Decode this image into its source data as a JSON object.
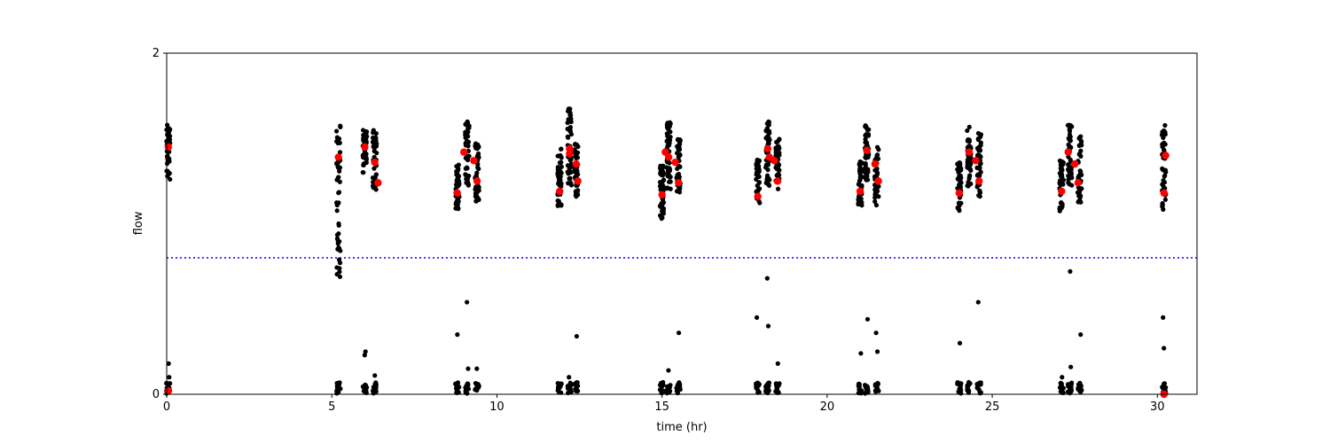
{
  "chart_data": {
    "type": "scatter",
    "title": "",
    "xlabel": "time (hr)",
    "ylabel": "flow",
    "xlim": [
      0,
      31.2
    ],
    "ylim": [
      0,
      2
    ],
    "xticks": [
      0,
      5,
      10,
      15,
      20,
      25,
      30
    ],
    "xtick_labels": [
      "0",
      "5",
      "10",
      "15",
      "20",
      "25",
      "30"
    ],
    "yticks": [
      0,
      2
    ],
    "ytick_labels": [
      "0",
      "2"
    ],
    "grid": false,
    "threshold_line": {
      "y": 0.8,
      "style": "dotted",
      "color": "#0000ff"
    },
    "colors": {
      "points": "#000000",
      "highlights": "#ff0000",
      "threshold": "#0000ff"
    },
    "clusters": [
      {
        "x": 0.05,
        "low": 1.26,
        "high": 1.58,
        "zeros": true,
        "outliers": [
          0.18,
          0.1
        ]
      },
      {
        "x": 5.2,
        "low": 0.67,
        "high": 1.58,
        "zeros": true,
        "outliers": [
          0.9,
          1.0
        ]
      },
      {
        "x": 6.0,
        "low": 1.3,
        "high": 1.55,
        "zeros": true,
        "outliers": [
          0.25,
          0.23
        ]
      },
      {
        "x": 6.3,
        "low": 1.2,
        "high": 1.55,
        "zeros": true,
        "outliers": [
          0.11
        ]
      },
      {
        "x": 8.8,
        "low": 1.08,
        "high": 1.35,
        "zeros": true,
        "outliers": [
          0.35
        ]
      },
      {
        "x": 9.1,
        "low": 1.22,
        "high": 1.6,
        "zeros": true,
        "outliers": [
          0.54,
          0.15
        ]
      },
      {
        "x": 9.4,
        "low": 1.13,
        "high": 1.48,
        "zeros": true,
        "outliers": [
          0.15
        ]
      },
      {
        "x": 11.9,
        "low": 1.1,
        "high": 1.45,
        "zeros": true,
        "outliers": []
      },
      {
        "x": 12.2,
        "low": 1.22,
        "high": 1.68,
        "zeros": true,
        "outliers": [
          0.1
        ]
      },
      {
        "x": 12.4,
        "low": 1.15,
        "high": 1.47,
        "zeros": true,
        "outliers": [
          0.34
        ]
      },
      {
        "x": 15.0,
        "low": 1.03,
        "high": 1.35,
        "zeros": true,
        "outliers": []
      },
      {
        "x": 15.2,
        "low": 1.2,
        "high": 1.6,
        "zeros": true,
        "outliers": [
          0.14
        ]
      },
      {
        "x": 15.5,
        "low": 1.18,
        "high": 1.5,
        "zeros": true,
        "outliers": [
          0.36
        ]
      },
      {
        "x": 17.9,
        "low": 1.1,
        "high": 1.38,
        "zeros": true,
        "outliers": [
          0.45
        ]
      },
      {
        "x": 18.2,
        "low": 1.22,
        "high": 1.6,
        "zeros": true,
        "outliers": [
          0.68,
          0.4
        ]
      },
      {
        "x": 18.5,
        "low": 1.2,
        "high": 1.5,
        "zeros": true,
        "outliers": [
          0.18
        ]
      },
      {
        "x": 21.0,
        "low": 1.1,
        "high": 1.37,
        "zeros": true,
        "outliers": [
          0.24
        ]
      },
      {
        "x": 21.2,
        "low": 1.25,
        "high": 1.58,
        "zeros": true,
        "outliers": [
          0.44
        ]
      },
      {
        "x": 21.5,
        "low": 1.1,
        "high": 1.45,
        "zeros": true,
        "outliers": [
          0.36,
          0.25
        ]
      },
      {
        "x": 24.0,
        "low": 1.06,
        "high": 1.36,
        "zeros": true,
        "outliers": [
          0.3
        ]
      },
      {
        "x": 24.3,
        "low": 1.22,
        "high": 1.57,
        "zeros": true,
        "outliers": [
          0.07
        ]
      },
      {
        "x": 24.6,
        "low": 1.16,
        "high": 1.55,
        "zeros": true,
        "outliers": [
          0.54
        ]
      },
      {
        "x": 27.1,
        "low": 1.06,
        "high": 1.38,
        "zeros": true,
        "outliers": [
          0.1
        ]
      },
      {
        "x": 27.35,
        "low": 1.22,
        "high": 1.58,
        "zeros": true,
        "outliers": [
          0.72,
          0.16
        ]
      },
      {
        "x": 27.65,
        "low": 1.12,
        "high": 1.52,
        "zeros": true,
        "outliers": [
          0.35
        ]
      },
      {
        "x": 30.2,
        "low": 1.07,
        "high": 1.58,
        "zeros": true,
        "outliers": [
          0.45,
          0.27
        ]
      }
    ],
    "highlights": [
      [
        0.05,
        1.45
      ],
      [
        0.05,
        0.02
      ],
      [
        5.2,
        1.39
      ],
      [
        6.0,
        1.45
      ],
      [
        6.3,
        1.36
      ],
      [
        6.4,
        1.24
      ],
      [
        8.8,
        1.18
      ],
      [
        9.0,
        1.42
      ],
      [
        9.3,
        1.37
      ],
      [
        9.4,
        1.25
      ],
      [
        11.9,
        1.19
      ],
      [
        12.2,
        1.44
      ],
      [
        12.2,
        1.41
      ],
      [
        12.4,
        1.35
      ],
      [
        12.45,
        1.25
      ],
      [
        15.0,
        1.17
      ],
      [
        15.1,
        1.42
      ],
      [
        15.2,
        1.39
      ],
      [
        15.4,
        1.36
      ],
      [
        15.5,
        1.24
      ],
      [
        17.9,
        1.16
      ],
      [
        18.2,
        1.44
      ],
      [
        18.25,
        1.39
      ],
      [
        18.4,
        1.37
      ],
      [
        18.5,
        1.25
      ],
      [
        21.0,
        1.19
      ],
      [
        21.2,
        1.43
      ],
      [
        21.45,
        1.35
      ],
      [
        21.55,
        1.25
      ],
      [
        24.0,
        1.18
      ],
      [
        24.3,
        1.42
      ],
      [
        24.5,
        1.37
      ],
      [
        24.6,
        1.25
      ],
      [
        27.1,
        1.19
      ],
      [
        27.3,
        1.42
      ],
      [
        27.5,
        1.35
      ],
      [
        27.6,
        1.24
      ],
      [
        30.2,
        1.18
      ],
      [
        30.25,
        1.4
      ],
      [
        30.2,
        0.0
      ]
    ]
  }
}
